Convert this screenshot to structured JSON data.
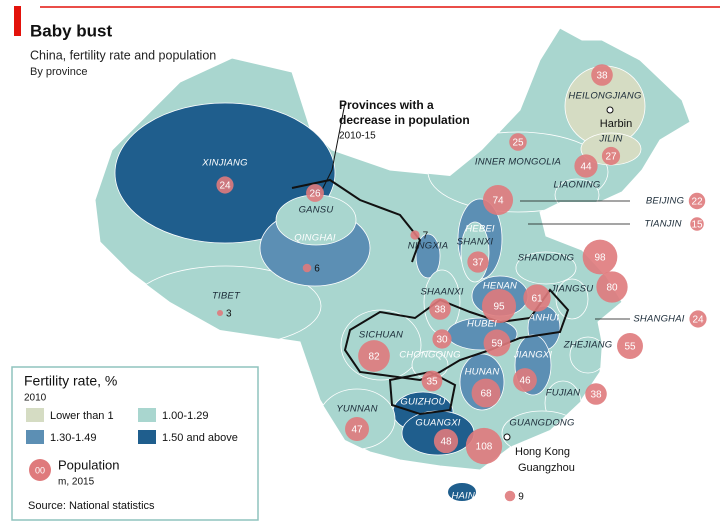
{
  "header": {
    "title": "Baby bust",
    "subtitle": "China, fertility rate and population",
    "note": "By province"
  },
  "annotation": {
    "lines": [
      "Provinces with a",
      "decrease in population"
    ],
    "period": "2010-15"
  },
  "legend": {
    "fertility_title": "Fertility rate, %",
    "fertility_year": "2010",
    "classes": [
      {
        "label": "Lower than 1",
        "color": "#d5dcc3"
      },
      {
        "label": "1.00-1.29",
        "color": "#a9d6cf"
      },
      {
        "label": "1.30-1.49",
        "color": "#5c8fb4"
      },
      {
        "label": "1.50 and above",
        "color": "#1f5e8d"
      }
    ],
    "population_title": "Population",
    "population_unit": "m, 2015",
    "sample": "00",
    "bubble_color": "#df7a7c"
  },
  "provinces": [
    {
      "name": "XINJIANG",
      "population": 24,
      "fertility_class": 3
    },
    {
      "name": "TIBET",
      "population": 3,
      "fertility_class": 1
    },
    {
      "name": "QINGHAI",
      "population": 6,
      "fertility_class": 2
    },
    {
      "name": "GANSU",
      "population": 26,
      "fertility_class": 1
    },
    {
      "name": "NINGXIA",
      "population": 7,
      "fertility_class": 2
    },
    {
      "name": "INNER MONGOLIA",
      "population": 25,
      "fertility_class": 1
    },
    {
      "name": "HEILONGJIANG",
      "population": 38,
      "fertility_class": 0
    },
    {
      "name": "JILIN",
      "population": 27,
      "fertility_class": 0
    },
    {
      "name": "LIAONING",
      "population": 44,
      "fertility_class": 1
    },
    {
      "name": "BEIJING",
      "population": 22,
      "fertility_class": 0
    },
    {
      "name": "TIANJIN",
      "population": 15,
      "fertility_class": 0
    },
    {
      "name": "HEBEI",
      "population": 74,
      "fertility_class": 2
    },
    {
      "name": "SHANXI",
      "population": 37,
      "fertility_class": 1
    },
    {
      "name": "SHANDONG",
      "population": 98,
      "fertility_class": 1
    },
    {
      "name": "HENAN",
      "population": 95,
      "fertility_class": 2
    },
    {
      "name": "SHAANXI",
      "population": 38,
      "fertility_class": 1
    },
    {
      "name": "JIANGSU",
      "population": 80,
      "fertility_class": 1
    },
    {
      "name": "ANHUI",
      "population": 61,
      "fertility_class": 2
    },
    {
      "name": "SHANGHAI",
      "population": 24,
      "fertility_class": 0
    },
    {
      "name": "HUBEI",
      "population": 59,
      "fertility_class": 2
    },
    {
      "name": "SICHUAN",
      "population": 82,
      "fertility_class": 1
    },
    {
      "name": "CHONGQING",
      "population": 30,
      "fertility_class": 1
    },
    {
      "name": "ZHEJIANG",
      "population": 55,
      "fertility_class": 1
    },
    {
      "name": "JIANGXI",
      "population": 46,
      "fertility_class": 2
    },
    {
      "name": "HUNAN",
      "population": 68,
      "fertility_class": 2
    },
    {
      "name": "GUIZHOU",
      "population": 35,
      "fertility_class": 3
    },
    {
      "name": "FUJIAN",
      "population": 38,
      "fertility_class": 1
    },
    {
      "name": "YUNNAN",
      "population": 47,
      "fertility_class": 1
    },
    {
      "name": "GUANGXI",
      "population": 48,
      "fertility_class": 3
    },
    {
      "name": "GUANGDONG",
      "population": 108,
      "fertility_class": 1
    },
    {
      "name": "HAINAN",
      "population": 9,
      "fertility_class": 3
    }
  ],
  "cities": [
    "Harbin",
    "Hong Kong",
    "Guangzhou"
  ],
  "source": "Source: National statistics"
}
